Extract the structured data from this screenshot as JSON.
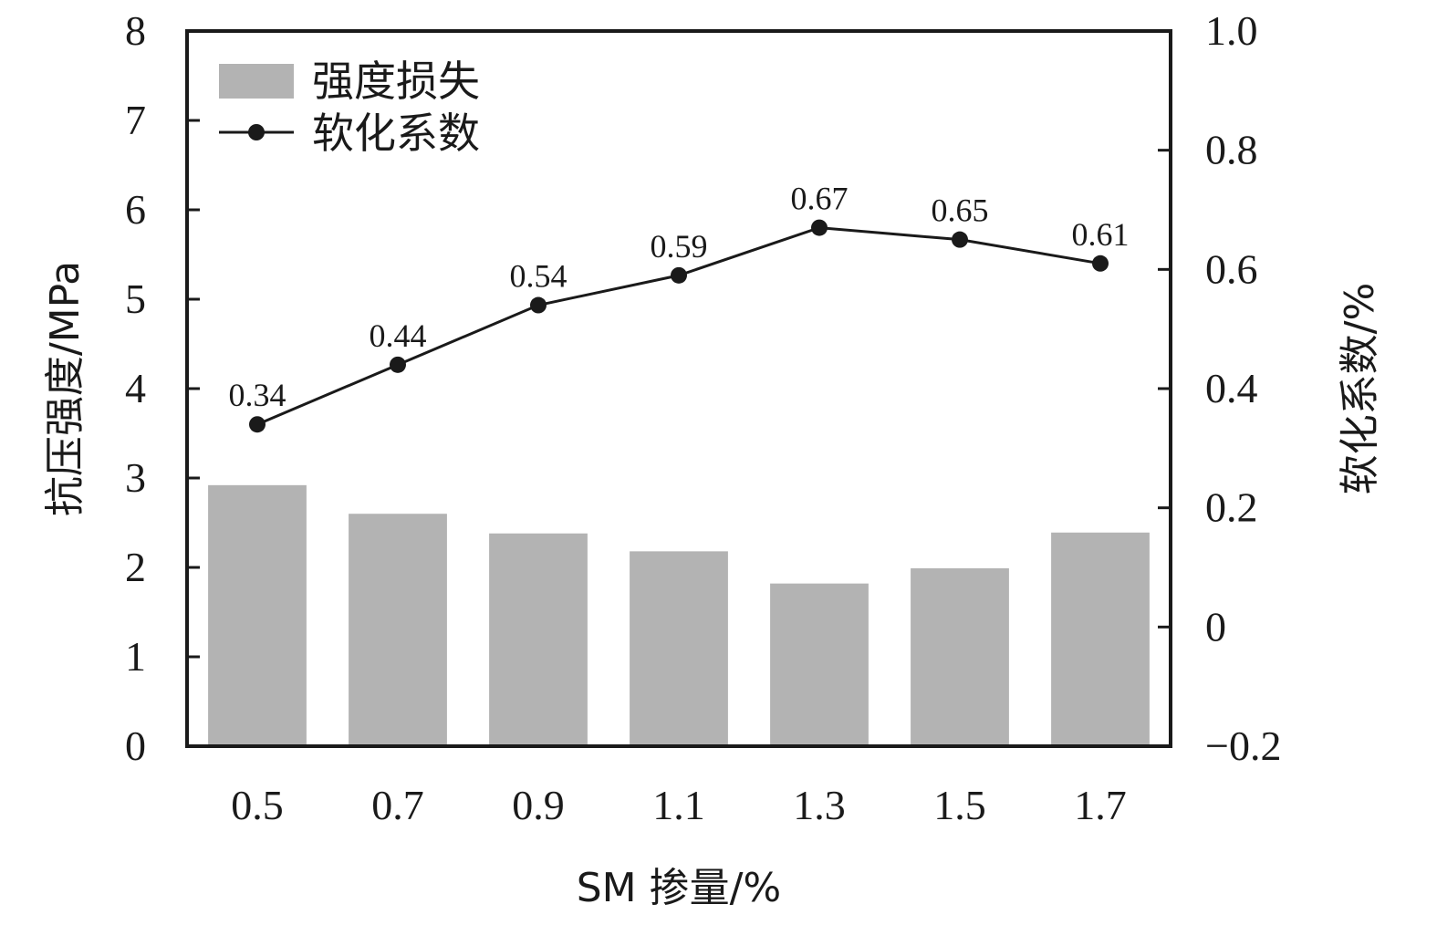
{
  "chart_data": {
    "type": "bar",
    "categories": [
      "0.5",
      "0.7",
      "0.9",
      "1.1",
      "1.3",
      "1.5",
      "1.7"
    ],
    "xlabel": "SM 掺量/%",
    "ylabel": "抗压强度/MPa",
    "y2label": "软化系数/%",
    "ylim": [
      0,
      8
    ],
    "y2lim": [
      -0.2,
      1.0
    ],
    "yticks": [
      "0",
      "1",
      "2",
      "3",
      "4",
      "5",
      "6",
      "7",
      "8"
    ],
    "y2ticks": [
      "−0.2",
      "0",
      "0.2",
      "0.4",
      "0.6",
      "0.8",
      "1.0"
    ],
    "legend_position": "top-left",
    "series": [
      {
        "name": "强度损失",
        "type": "bar",
        "axis": "left",
        "color": "#b3b3b3",
        "values": [
          2.92,
          2.6,
          2.38,
          2.18,
          1.82,
          1.99,
          2.39
        ]
      },
      {
        "name": "软化系数",
        "type": "line",
        "axis": "right",
        "color": "#1a1a1a",
        "values": [
          0.34,
          0.44,
          0.54,
          0.59,
          0.67,
          0.65,
          0.61
        ],
        "labels": [
          "0.34",
          "0.44",
          "0.54",
          "0.59",
          "0.67",
          "0.65",
          "0.61"
        ]
      }
    ]
  }
}
